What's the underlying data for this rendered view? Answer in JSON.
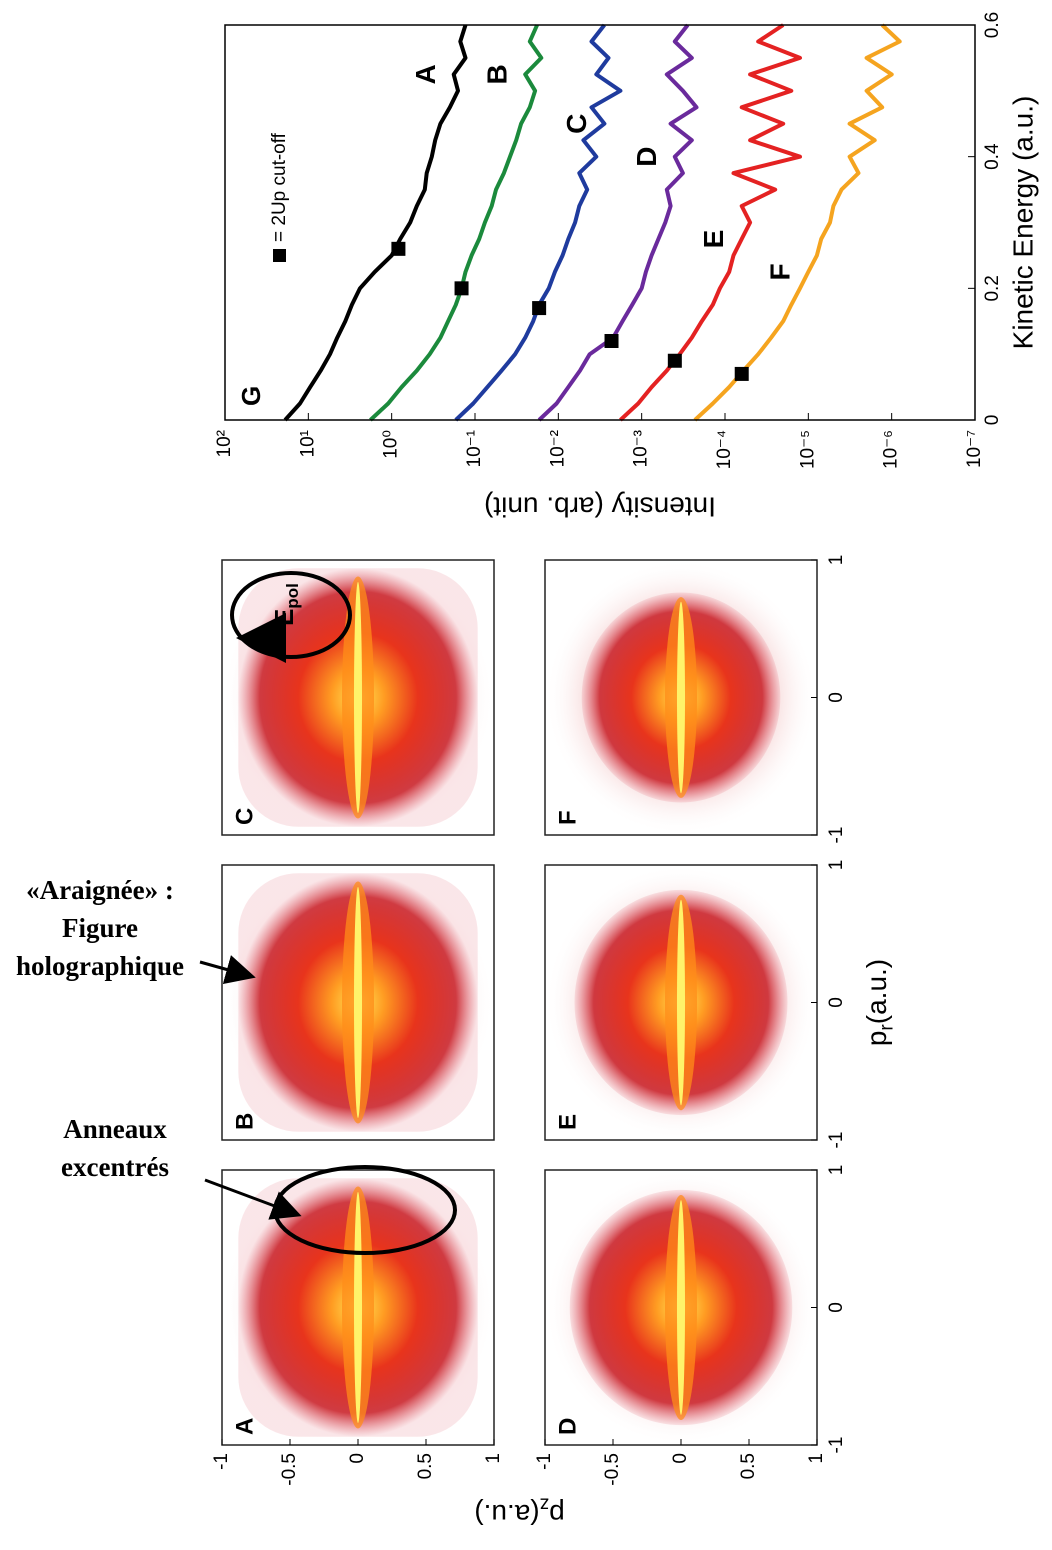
{
  "chart_data": [
    {
      "type": "image-grid",
      "panels": [
        "A",
        "B",
        "C",
        "D",
        "E",
        "F"
      ],
      "xlabel": {
        "text": "p",
        "sub": "r",
        "rest": "(a.u.)"
      },
      "ylabel": {
        "text": "p",
        "sub": "z",
        "rest": "(a.u.)"
      },
      "xlim": [
        -1,
        1
      ],
      "xticks": [
        -1,
        0,
        1
      ],
      "ylim": [
        -1,
        1
      ],
      "yticks": [
        -1,
        -0.5,
        0,
        0.5,
        1
      ],
      "y_inverted": true,
      "field_label": {
        "text": "E",
        "sub": "pol"
      },
      "annotations": [
        {
          "lines": [
            "Anneaux",
            "excentrés"
          ]
        },
        {
          "lines": [
            "«Araignée» :",
            "Figure",
            "holographique"
          ]
        }
      ]
    },
    {
      "type": "line",
      "xlabel": "Kinetic Energy (a.u.)",
      "ylabel": "Intensity (arb. unit)",
      "panel_label": "G",
      "xlim": [
        0,
        0.6
      ],
      "xticks": [
        0,
        0.2,
        0.4,
        0.6
      ],
      "ylim": [
        1e-07,
        100
      ],
      "log_y": true,
      "yticks": [
        {
          "value": 100,
          "label": "10²"
        },
        {
          "value": 10,
          "label": "10¹"
        },
        {
          "value": 1,
          "label": "10⁰"
        },
        {
          "value": 0.1,
          "label": "10⁻¹"
        },
        {
          "value": 0.01,
          "label": "10⁻²"
        },
        {
          "value": 0.001,
          "label": "10⁻³"
        },
        {
          "value": 0.0001,
          "label": "10⁻⁴"
        },
        {
          "value": 1e-05,
          "label": "10⁻⁵"
        },
        {
          "value": 1e-06,
          "label": "10⁻⁶"
        },
        {
          "value": 1e-07,
          "label": "10⁻⁷"
        }
      ],
      "x": [
        0,
        0.025,
        0.05,
        0.075,
        0.1,
        0.125,
        0.15,
        0.175,
        0.2,
        0.225,
        0.25,
        0.275,
        0.3,
        0.325,
        0.35,
        0.375,
        0.4,
        0.425,
        0.45,
        0.475,
        0.5,
        0.525,
        0.55,
        0.575,
        0.6
      ],
      "series": [
        {
          "name": "A",
          "color": "#000000",
          "values": [
            19,
            12.6,
            9.5,
            7.1,
            5.5,
            4.5,
            3.6,
            3.0,
            2.4,
            1.6,
            1.0,
            0.79,
            0.6,
            0.5,
            0.4,
            0.38,
            0.33,
            0.3,
            0.26,
            0.2,
            0.16,
            0.18,
            0.13,
            0.15,
            0.13
          ]
        },
        {
          "name": "B",
          "color": "#1b8a3c",
          "values": [
            1.8,
            1.1,
            0.76,
            0.5,
            0.35,
            0.26,
            0.21,
            0.17,
            0.145,
            0.13,
            0.11,
            0.089,
            0.076,
            0.063,
            0.056,
            0.045,
            0.038,
            0.032,
            0.028,
            0.022,
            0.019,
            0.025,
            0.016,
            0.022,
            0.018
          ]
        },
        {
          "name": "C",
          "color": "#1f3b9e",
          "values": [
            0.17,
            0.105,
            0.071,
            0.048,
            0.033,
            0.025,
            0.02,
            0.017,
            0.013,
            0.011,
            0.0089,
            0.0076,
            0.0063,
            0.0056,
            0.0045,
            0.0056,
            0.0035,
            0.005,
            0.0028,
            0.004,
            0.0018,
            0.0035,
            0.0025,
            0.004,
            0.0028
          ]
        },
        {
          "name": "D",
          "color": "#6a2a9c",
          "values": [
            0.017,
            0.0105,
            0.0076,
            0.0055,
            0.0042,
            0.0022,
            0.0017,
            0.0013,
            0.001,
            0.00089,
            0.00076,
            0.00063,
            0.00052,
            0.00045,
            0.0005,
            0.00032,
            0.0004,
            0.00025,
            0.00045,
            0.00022,
            0.00032,
            0.0005,
            0.00025,
            0.0004,
            0.00028
          ]
        },
        {
          "name": "E",
          "color": "#e42222",
          "values": [
            0.0018,
            0.0011,
            0.00076,
            0.0005,
            0.00035,
            0.00025,
            0.00019,
            0.00014,
            0.000115,
            8.9e-05,
            7.9e-05,
            6.3e-05,
            5e-05,
            6.3e-05,
            2.5e-05,
            7.9e-05,
            1.26e-05,
            5e-05,
            2e-05,
            6.3e-05,
            1.6e-05,
            5e-05,
            1.26e-05,
            4e-05,
            2e-05
          ]
        },
        {
          "name": "F",
          "color": "#f5a41f",
          "values": [
            0.00023,
            0.00014,
            8.9e-05,
            6e-05,
            4e-05,
            2.8e-05,
            2e-05,
            1.6e-05,
            1.26e-05,
            1e-05,
            7.9e-06,
            7e-06,
            5.5e-06,
            5e-06,
            4e-06,
            2.5e-06,
            3.2e-06,
            1.6e-06,
            3.2e-06,
            1.3e-06,
            2e-06,
            1e-06,
            2e-06,
            8e-07,
            1.3e-06
          ]
        }
      ],
      "cutoff": {
        "name": "= 2Up cut-off",
        "color": "#000000",
        "x": [
          0.26,
          0.2,
          0.17,
          0.12,
          0.09,
          0.07
        ],
        "values": [
          0.83,
          0.145,
          0.017,
          0.0023,
          0.0004,
          6.3e-05
        ]
      }
    }
  ]
}
